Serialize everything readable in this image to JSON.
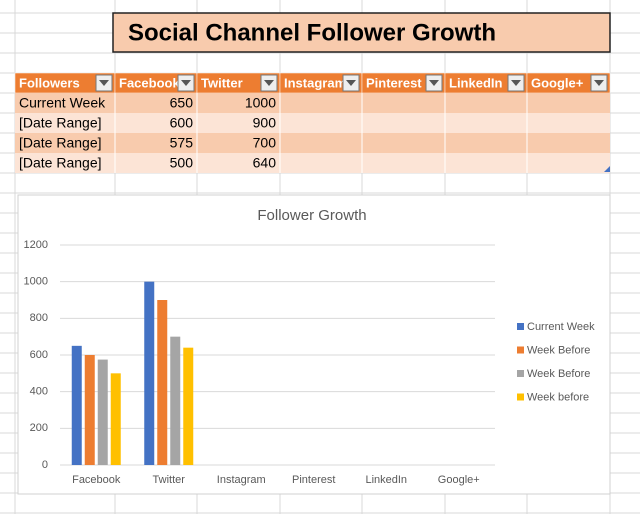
{
  "header": {
    "title": "Social Channel Follower Growth"
  },
  "table": {
    "columns": [
      "Followers",
      "Facebook",
      "Twitter",
      "Instagram",
      "Pinterest",
      "LinkedIn",
      "Google+"
    ],
    "rows": [
      {
        "label": "Current Week",
        "values": [
          650,
          1000
        ]
      },
      {
        "label": "[Date Range]",
        "values": [
          600,
          900
        ]
      },
      {
        "label": "[Date Range]",
        "values": [
          575,
          700
        ]
      },
      {
        "label": "[Date Range]",
        "values": [
          500,
          640
        ]
      }
    ]
  },
  "chart_data": {
    "type": "bar",
    "title": "Follower Growth",
    "categories": [
      "Facebook",
      "Twitter",
      "Instagram",
      "Pinterest",
      "LinkedIn",
      "Google+"
    ],
    "series": [
      {
        "name": "Current Week",
        "color": "#4472c4",
        "values": [
          650,
          1000,
          null,
          null,
          null,
          null
        ]
      },
      {
        "name": "Week Before",
        "color": "#ed7d31",
        "values": [
          600,
          900,
          null,
          null,
          null,
          null
        ]
      },
      {
        "name": "Week Before",
        "color": "#a5a5a5",
        "values": [
          575,
          700,
          null,
          null,
          null,
          null
        ]
      },
      {
        "name": "Week before",
        "color": "#ffc000",
        "values": [
          500,
          640,
          null,
          null,
          null,
          null
        ]
      }
    ],
    "ylim": [
      0,
      1200
    ],
    "yticks": [
      0,
      200,
      400,
      600,
      800,
      1000,
      1200
    ],
    "grid": true,
    "legend": "right"
  }
}
